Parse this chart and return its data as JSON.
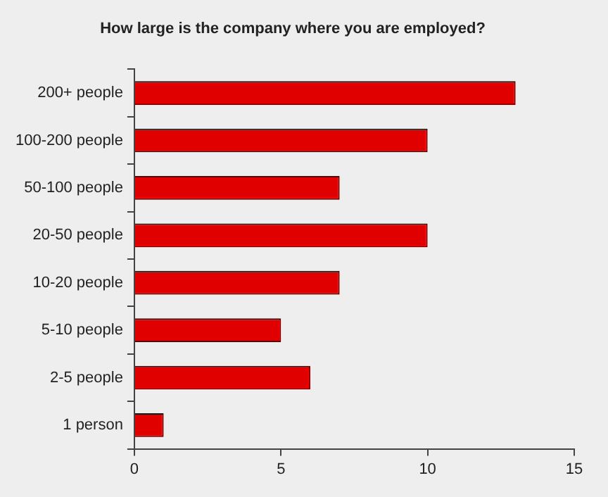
{
  "chart_data": {
    "type": "bar",
    "orientation": "horizontal",
    "title": "How large is the company where you are employed?",
    "categories": [
      "200+ people",
      "100-200 people",
      "50-100 people",
      "20-50 people",
      "10-20 people",
      "5-10 people",
      "2-5 people",
      "1 person"
    ],
    "values": [
      13,
      10,
      7,
      10,
      7,
      5,
      6,
      1
    ],
    "color": "#e00000",
    "xlim": [
      0,
      15
    ],
    "xticks": [
      0,
      5,
      10,
      15
    ],
    "grid": false,
    "legend": false
  }
}
